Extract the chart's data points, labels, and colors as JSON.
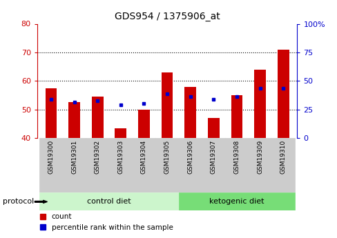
{
  "title": "GDS954 / 1375906_at",
  "categories": [
    "GSM19300",
    "GSM19301",
    "GSM19302",
    "GSM19303",
    "GSM19304",
    "GSM19305",
    "GSM19306",
    "GSM19307",
    "GSM19308",
    "GSM19309",
    "GSM19310"
  ],
  "red_values": [
    57.5,
    52.5,
    54.5,
    43.5,
    50.0,
    63.0,
    58.0,
    47.0,
    55.0,
    64.0,
    71.0
  ],
  "blue_values": [
    53.5,
    52.5,
    53.0,
    51.5,
    52.0,
    55.5,
    54.5,
    53.5,
    54.5,
    57.5,
    57.5
  ],
  "ylim_left": [
    40,
    80
  ],
  "ylim_right": [
    0,
    100
  ],
  "yticks_left": [
    40,
    50,
    60,
    70,
    80
  ],
  "yticks_right": [
    0,
    25,
    50,
    75,
    100
  ],
  "ytick_labels_right": [
    "0",
    "25",
    "50",
    "75",
    "100%"
  ],
  "left_axis_color": "#cc0000",
  "right_axis_color": "#0000cc",
  "bar_color": "#cc0000",
  "dot_color": "#0000cc",
  "bg_color": "#ffffff",
  "control_count": 6,
  "control_label": "control diet",
  "ketogenic_label": "ketogenic diet",
  "protocol_label": "protocol",
  "legend_count": "count",
  "legend_percentile": "percentile rank within the sample",
  "bar_width": 0.5,
  "tick_bg_color": "#cccccc",
  "control_bg_color": "#ccf5cc",
  "ketogenic_bg_color": "#77dd77"
}
